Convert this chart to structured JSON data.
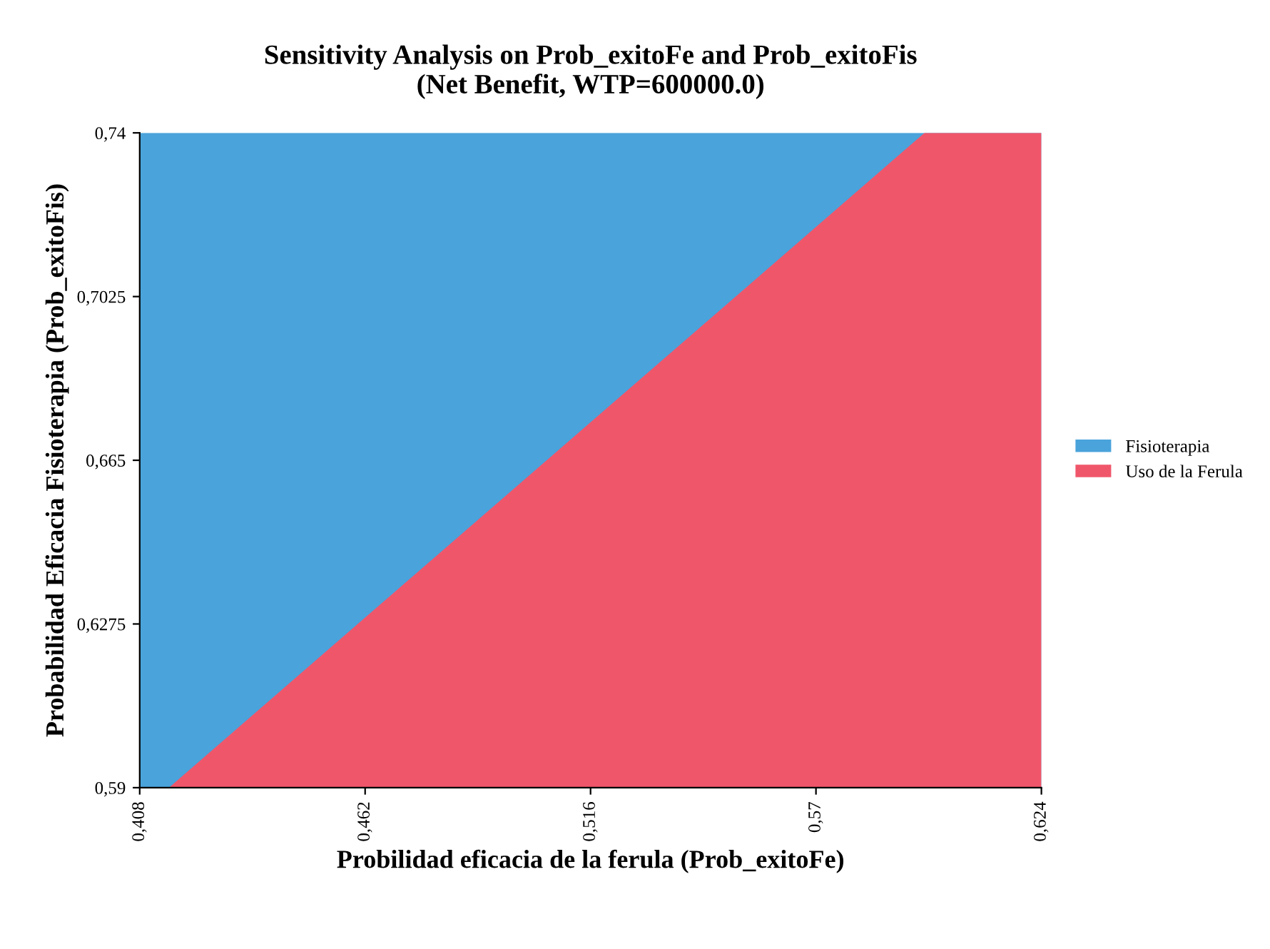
{
  "chart_data": {
    "type": "area",
    "title": "Sensitivity Analysis on Prob_exitoFe and Prob_exitoFis\n(Net Benefit, WTP=600000.0)",
    "xlabel": "Probilidad eficacia de la ferula (Prob_exitoFe)",
    "ylabel": "Probabilidad Eficacia Fisioterapia (Prob_exitoFis)",
    "series": [
      {
        "name": "Fisioterapia",
        "color": "#4aa3db",
        "x": [
          0.408,
          0.624
        ],
        "values": [
          0.74,
          0.74
        ]
      },
      {
        "name": "Uso de la Ferula",
        "color": "#f0566a",
        "x": [
          0.415,
          0.596,
          0.624
        ],
        "values": [
          0.59,
          0.74,
          0.74
        ]
      }
    ],
    "xlim": [
      0.408,
      0.624
    ],
    "xticks": [
      {
        "value": 0.408,
        "label": "0,408"
      },
      {
        "value": 0.462,
        "label": "0,462"
      },
      {
        "value": 0.516,
        "label": "0,516"
      },
      {
        "value": 0.57,
        "label": "0,57"
      },
      {
        "value": 0.624,
        "label": "0,624"
      }
    ],
    "ylim": [
      0.59,
      0.74
    ],
    "yticks": [
      {
        "value": 0.59,
        "label": "0,59"
      },
      {
        "value": 0.6275,
        "label": "0,6275"
      },
      {
        "value": 0.665,
        "label": "0,665"
      },
      {
        "value": 0.7025,
        "label": "0,7025"
      },
      {
        "value": 0.74,
        "label": "0,74"
      }
    ],
    "legend": "right",
    "grid": false
  }
}
